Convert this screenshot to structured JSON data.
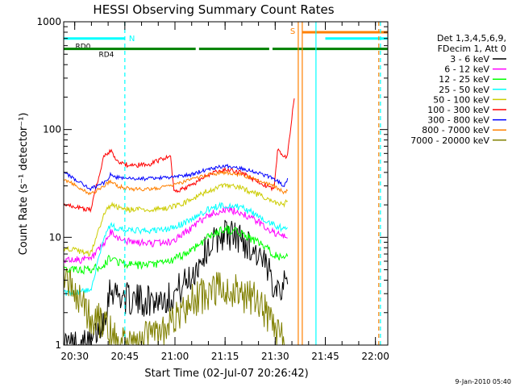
{
  "chart_data": {
    "type": "line",
    "title": "HESSI Observing Summary Count Rates",
    "xlabel": "Start Time (02-Jul-07 20:26:42)",
    "ylabel": "Count Rate (s⁻¹ detector⁻¹)",
    "yscale": "log",
    "ylim": [
      1,
      1000
    ],
    "y_ticks": [
      {
        "value": 1,
        "label": "1"
      },
      {
        "value": 10,
        "label": "10"
      },
      {
        "value": 100,
        "label": "100"
      },
      {
        "value": 1000,
        "label": "1000"
      }
    ],
    "x_unit": "minutes after 20:26:42",
    "xlim": [
      0,
      97
    ],
    "x_ticks": [
      {
        "value": 3.3,
        "label": "20:30"
      },
      {
        "value": 18.3,
        "label": "20:45"
      },
      {
        "value": 33.3,
        "label": "21:00"
      },
      {
        "value": 48.3,
        "label": "21:15"
      },
      {
        "value": 63.3,
        "label": "21:30"
      },
      {
        "value": 78.3,
        "label": "21:45"
      },
      {
        "value": 93.3,
        "label": "22:00"
      }
    ],
    "legend": {
      "placement": "right",
      "header": [
        "Det 1,3,4,5,6,9,",
        "FDecim 1, Att 0"
      ]
    },
    "series": [
      {
        "name": "3 - 6 keV",
        "color": "#000000",
        "x": [
          0,
          8,
          12,
          14,
          16,
          20,
          26,
          32,
          38,
          43,
          48,
          53,
          58,
          63,
          66,
          67
        ],
        "y": [
          1.0,
          1.0,
          1.8,
          3.5,
          3.0,
          2.6,
          2.6,
          2.8,
          4.2,
          8.0,
          11.0,
          9.8,
          7.0,
          3.8,
          3.5,
          4.0
        ]
      },
      {
        "name": "6 - 12 keV",
        "color": "#ff00ff",
        "x": [
          0,
          8,
          12,
          14,
          16,
          20,
          26,
          32,
          38,
          43,
          48,
          53,
          58,
          63,
          66,
          67
        ],
        "y": [
          6.2,
          6.2,
          8.5,
          11.0,
          10.0,
          9.0,
          8.8,
          9.0,
          12.0,
          16.0,
          18.0,
          17.0,
          14.0,
          11.0,
          10.0,
          10.5
        ]
      },
      {
        "name": "12 - 25 keV",
        "color": "#00ff00",
        "x": [
          0,
          8,
          12,
          14,
          16,
          20,
          26,
          32,
          38,
          43,
          48,
          53,
          58,
          63,
          66,
          67
        ],
        "y": [
          5.0,
          5.0,
          5.5,
          6.5,
          6.0,
          5.5,
          5.5,
          6.0,
          7.5,
          10.0,
          12.0,
          11.0,
          9.0,
          7.0,
          6.2,
          6.5
        ]
      },
      {
        "name": "25 - 50 keV",
        "color": "#00ffff",
        "x": [
          0,
          8,
          12,
          14,
          16,
          20,
          26,
          32,
          38,
          43,
          48,
          53,
          58,
          63,
          66,
          67
        ],
        "y": [
          3.0,
          3.2,
          10.0,
          13.0,
          12.0,
          11.5,
          11.5,
          12.0,
          14.5,
          18.0,
          20.0,
          19.0,
          16.0,
          13.0,
          12.0,
          13.0
        ]
      },
      {
        "name": "50 - 100 keV",
        "color": "#cccc00",
        "x": [
          0,
          8,
          12,
          14,
          16,
          20,
          26,
          32,
          38,
          43,
          48,
          53,
          58,
          63,
          66,
          67
        ],
        "y": [
          8.0,
          7.0,
          16.0,
          20.0,
          19.0,
          18.0,
          18.0,
          19.0,
          22.0,
          27.0,
          30.0,
          29.0,
          25.0,
          21.0,
          20.0,
          22.0
        ]
      },
      {
        "name": "100 - 300 keV",
        "color": "#ff0000",
        "x": [
          0,
          8,
          12,
          14,
          16,
          20,
          26,
          32,
          33,
          38,
          43,
          48,
          53,
          58,
          63,
          64,
          66,
          67,
          69
        ],
        "y": [
          20.0,
          18.0,
          56.0,
          64.0,
          50.0,
          46.0,
          48.0,
          58.0,
          26.0,
          30.0,
          38.0,
          42.0,
          40.0,
          33.0,
          28.0,
          64.0,
          56.0,
          58.0,
          200.0
        ]
      },
      {
        "name": "300 - 800 keV",
        "color": "#0000ff",
        "x": [
          0,
          8,
          12,
          14,
          16,
          20,
          26,
          32,
          38,
          43,
          48,
          53,
          58,
          63,
          66,
          67
        ],
        "y": [
          40.0,
          28.0,
          32.0,
          38.0,
          36.0,
          35.0,
          35.0,
          36.0,
          38.0,
          43.0,
          46.0,
          44.0,
          40.0,
          35.0,
          30.0,
          35.0
        ]
      },
      {
        "name": "800 - 7000 keV",
        "color": "#ff8000",
        "x": [
          0,
          8,
          12,
          14,
          16,
          20,
          26,
          32,
          38,
          43,
          48,
          53,
          58,
          63,
          66,
          67
        ],
        "y": [
          35.0,
          25.0,
          30.0,
          33.0,
          30.0,
          28.0,
          28.0,
          30.0,
          34.0,
          38.0,
          40.0,
          38.0,
          34.0,
          30.0,
          26.0,
          28.0
        ]
      },
      {
        "name": "7000 - 20000 keV",
        "color": "#808000",
        "x": [
          0,
          8,
          12,
          14,
          16,
          20,
          26,
          32,
          38,
          43,
          48,
          53,
          58,
          63,
          66
        ],
        "y": [
          5.0,
          1.8,
          1.6,
          1.3,
          1.0,
          1.0,
          1.2,
          1.5,
          2.5,
          3.0,
          3.5,
          3.0,
          2.5,
          1.5,
          1.0
        ]
      }
    ],
    "state_bars": [
      {
        "label": "RD0",
        "color": "#00ffff",
        "y": 700,
        "segments": [
          [
            0,
            18.3
          ],
          [
            78.3,
            97
          ]
        ]
      },
      {
        "label": "RD4",
        "color": "#008000",
        "y": 560,
        "segments": [
          [
            0,
            39.5
          ],
          [
            40.5,
            61.5
          ],
          [
            62.5,
            97
          ]
        ]
      },
      {
        "label": "",
        "color": "#ff8000",
        "y": 800,
        "segments": [
          [
            71.5,
            97
          ]
        ]
      }
    ],
    "flags": [
      {
        "label": "N",
        "color": "#00ffff",
        "x": 18.3
      },
      {
        "label": "S",
        "color": "#ff8000",
        "x": 70.2
      }
    ],
    "vertical_lines": [
      {
        "x": 18.3,
        "color": "#00ffff",
        "style": "dashed"
      },
      {
        "x": 70.2,
        "color": "#ff8000",
        "style": "solid"
      },
      {
        "x": 71.4,
        "color": "#ff8000",
        "style": "solid"
      },
      {
        "x": 75.5,
        "color": "#00ffff",
        "style": "solid"
      },
      {
        "x": 94.3,
        "color": "#ff8000",
        "style": "dashed"
      },
      {
        "x": 94.8,
        "color": "#00ffff",
        "style": "dashed"
      }
    ]
  },
  "footer": {
    "timestamp": "9-Jan-2010 05:40"
  }
}
